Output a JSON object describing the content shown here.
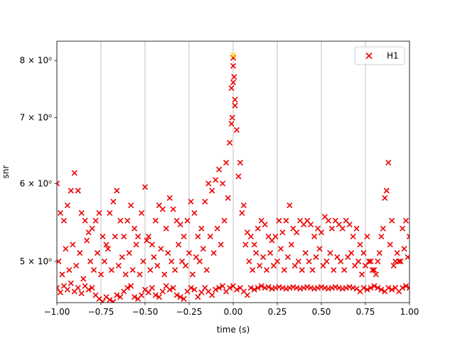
{
  "chart_data": {
    "type": "scatter",
    "xlabel": "time (s)",
    "ylabel": "snr",
    "xlim": [
      -1,
      1
    ],
    "ylim": [
      4.54,
      8.37
    ],
    "yscale": "log",
    "grid": "x",
    "legend": "upper right",
    "xticks": [
      {
        "value": -1,
        "label": "−1.00"
      },
      {
        "value": -0.75,
        "label": "−0.75"
      },
      {
        "value": -0.5,
        "label": "−0.50"
      },
      {
        "value": -0.25,
        "label": "−0.25"
      },
      {
        "value": 0,
        "label": "0.00"
      },
      {
        "value": 0.25,
        "label": "0.25"
      },
      {
        "value": 0.5,
        "label": "0.50"
      },
      {
        "value": 0.75,
        "label": "0.75"
      },
      {
        "value": 1,
        "label": "1.00"
      }
    ],
    "yticks": [
      {
        "value": 5,
        "label": "5 × 10⁰"
      },
      {
        "value": 6,
        "label": "6 × 10⁰"
      },
      {
        "value": 7,
        "label": "7 × 10⁰"
      },
      {
        "value": 8,
        "label": "8 × 10⁰"
      }
    ],
    "series": [
      {
        "name": "H1",
        "color": "#ee0000",
        "x": [
          -1.0,
          -0.98,
          -0.96,
          -0.94,
          -0.92,
          -0.9,
          -0.88,
          -0.86,
          -0.84,
          -0.82,
          -0.8,
          -0.78,
          -0.76,
          -0.74,
          -0.72,
          -0.7,
          -0.68,
          -0.66,
          -0.64,
          -0.62,
          -0.6,
          -0.58,
          -0.56,
          -0.54,
          -0.52,
          -0.5,
          -0.48,
          -0.46,
          -0.44,
          -0.42,
          -0.4,
          -0.38,
          -0.36,
          -0.34,
          -0.32,
          -0.3,
          -0.28,
          -0.26,
          -0.24,
          -0.22,
          -0.2,
          -0.18,
          -0.16,
          -0.14,
          -0.12,
          -0.1,
          -0.08,
          -0.06,
          -0.04,
          -0.02,
          0,
          0.02,
          0.04,
          0.06,
          0.08,
          0.1,
          0.12,
          0.14,
          0.16,
          0.18,
          0.2,
          0.22,
          0.24,
          0.26,
          0.28,
          0.3,
          0.32,
          0.34,
          0.36,
          0.38,
          0.4,
          0.42,
          0.44,
          0.46,
          0.48,
          0.5,
          0.52,
          0.54,
          0.56,
          0.58,
          0.6,
          0.62,
          0.64,
          0.66,
          0.68,
          0.7,
          0.72,
          0.74,
          0.76,
          0.78,
          0.8,
          0.82,
          0.84,
          0.86,
          0.88,
          0.9,
          0.92,
          0.94,
          0.96,
          0.98,
          1,
          -1.0,
          -0.98,
          -0.96,
          -0.94,
          -0.92,
          -0.9,
          -0.88,
          -0.86,
          -0.84,
          -0.82,
          -0.8,
          -0.78,
          -0.76,
          -0.74,
          -0.72,
          -0.7,
          -0.68,
          -0.66,
          -0.64,
          -0.62,
          -0.6,
          -0.58,
          -0.56,
          -0.54,
          -0.52,
          -0.5,
          -0.48,
          -0.46,
          -0.44,
          -0.42,
          -0.4,
          -0.38,
          -0.36,
          -0.34,
          -0.32,
          -0.3,
          -0.28,
          -0.26,
          -0.24,
          -0.22,
          -0.2,
          -0.18,
          -0.16,
          -0.14,
          -0.12,
          -0.1,
          -0.08,
          -0.06,
          -0.04,
          -0.02,
          0,
          0.02,
          0.04,
          0.06,
          0.08,
          0.1,
          0.12,
          0.14,
          0.16,
          0.18,
          0.2,
          0.22,
          0.24,
          0.26,
          0.28,
          0.3,
          0.32,
          0.34,
          0.36,
          0.38,
          0.4,
          0.42,
          0.44,
          0.46,
          0.48,
          0.5,
          0.52,
          0.54,
          0.56,
          0.58,
          0.6,
          0.62,
          0.64,
          0.66,
          0.68,
          0.7,
          0.72,
          0.74,
          0.76,
          0.78,
          0.8,
          0.82,
          0.84,
          0.86,
          0.88,
          0.9,
          0.92,
          0.94,
          0.96,
          0.98,
          1,
          -0.99,
          -0.97,
          -0.95,
          -0.93,
          -0.91,
          -0.89,
          -0.87,
          -0.85,
          -0.83,
          -0.81,
          -0.79,
          -0.77,
          -0.75,
          -0.73,
          -0.71,
          -0.69,
          -0.67,
          -0.65,
          -0.63,
          -0.61,
          -0.59,
          -0.57,
          -0.55,
          -0.53,
          -0.51,
          -0.49,
          -0.47,
          -0.45,
          -0.43,
          -0.41,
          -0.39,
          -0.37,
          -0.35,
          -0.33,
          -0.31,
          -0.29,
          -0.27,
          -0.25,
          -0.23,
          -0.21,
          -0.19,
          -0.17,
          -0.15,
          -0.13,
          -0.11,
          -0.09,
          -0.07,
          -0.05,
          -0.03,
          -0.01,
          0.01,
          0.03,
          0.05,
          0.07,
          0.09,
          0.11,
          0.13,
          0.15,
          0.17,
          0.19,
          0.21,
          0.23,
          0.25,
          0.27,
          0.29,
          0.31,
          0.33,
          0.35,
          0.37,
          0.39,
          0.41,
          0.43,
          0.45,
          0.47,
          0.49,
          0.51,
          0.53,
          0.55,
          0.57,
          0.59,
          0.61,
          0.63,
          0.65,
          0.67,
          0.69,
          0.71,
          0.73,
          0.75,
          0.77,
          0.79,
          0.81,
          0.83,
          0.85,
          0.87,
          0.89,
          0.91,
          0.93,
          0.95,
          0.97,
          0.99,
          -0.01,
          0.005,
          0,
          0.01,
          -0.005,
          0
        ],
        "y": [
          6.0,
          5.6,
          5.5,
          5.7,
          5.9,
          6.15,
          5.9,
          5.6,
          5.5,
          5.35,
          5.4,
          5.5,
          5.6,
          5.3,
          5.2,
          5.6,
          5.75,
          5.9,
          5.5,
          5.3,
          5.5,
          5.7,
          5.4,
          5.3,
          5.6,
          5.95,
          5.3,
          5.2,
          5.5,
          5.7,
          5.65,
          5.4,
          5.8,
          5.65,
          5.5,
          5.45,
          5.3,
          5.5,
          5.75,
          5.6,
          5.3,
          5.4,
          5.75,
          6.0,
          5.9,
          6.05,
          6.2,
          6.0,
          6.3,
          6.6,
          7.9,
          6.8,
          6.3,
          5.7,
          5.35,
          5.3,
          5.2,
          5.4,
          5.5,
          5.45,
          5.3,
          5.25,
          5.3,
          5.5,
          5.35,
          5.5,
          5.7,
          5.4,
          5.35,
          5.5,
          5.45,
          5.5,
          5.45,
          5.3,
          5.4,
          5.35,
          5.55,
          5.5,
          5.4,
          5.5,
          5.45,
          5.4,
          5.5,
          5.45,
          5.3,
          5.4,
          5.2,
          5.1,
          5.3,
          5.0,
          4.9,
          5.0,
          5.3,
          5.8,
          6.3,
          5.5,
          5.0,
          5.0,
          5.4,
          5.5,
          5.3,
          4.7,
          4.65,
          4.72,
          4.68,
          4.75,
          4.66,
          4.7,
          4.64,
          4.72,
          4.68,
          4.7,
          4.62,
          4.58,
          4.55,
          4.6,
          4.57,
          4.55,
          4.62,
          4.6,
          4.66,
          4.7,
          4.72,
          4.6,
          4.58,
          4.62,
          4.68,
          4.65,
          4.7,
          4.62,
          4.6,
          4.66,
          4.72,
          4.68,
          4.7,
          4.62,
          4.6,
          4.58,
          4.66,
          4.7,
          4.68,
          4.6,
          4.65,
          4.7,
          4.66,
          4.62,
          4.68,
          4.7,
          4.72,
          4.66,
          4.7,
          4.72,
          4.68,
          4.7,
          4.66,
          4.62,
          4.7,
          4.68,
          4.7,
          4.72,
          4.7,
          4.71,
          4.69,
          4.7,
          4.71,
          4.7,
          4.69,
          4.7,
          4.71,
          4.7,
          4.69,
          4.7,
          4.71,
          4.7,
          4.69,
          4.7,
          4.71,
          4.7,
          4.69,
          4.7,
          4.71,
          4.7,
          4.69,
          4.7,
          4.71,
          4.7,
          4.69,
          4.66,
          4.7,
          4.68,
          4.7,
          4.72,
          4.7,
          4.68,
          4.66,
          4.7,
          4.68,
          4.7,
          4.66,
          4.7,
          4.72,
          4.7,
          5.0,
          4.85,
          5.15,
          4.9,
          5.2,
          4.95,
          5.1,
          4.8,
          5.25,
          5.0,
          4.9,
          5.1,
          4.85,
          5.0,
          5.15,
          4.9,
          5.3,
          4.95,
          5.05,
          4.85,
          5.1,
          4.9,
          5.2,
          4.85,
          5.0,
          5.25,
          4.9,
          5.05,
          4.95,
          5.15,
          4.85,
          5.1,
          5.0,
          4.9,
          5.2,
          5.0,
          4.95,
          5.1,
          4.85,
          5.05,
          5.0,
          5.15,
          4.9,
          5.3,
          5.1,
          5.4,
          5.2,
          5.5,
          5.8,
          6.9,
          7.3,
          6.1,
          5.6,
          5.2,
          5.0,
          4.9,
          5.1,
          4.95,
          5.05,
          4.9,
          5.1,
          4.95,
          5.0,
          5.15,
          4.9,
          5.05,
          5.2,
          4.95,
          5.0,
          4.9,
          5.1,
          5.0,
          4.9,
          5.05,
          5.15,
          4.95,
          5.0,
          5.1,
          4.9,
          5.05,
          5.0,
          4.9,
          5.05,
          5.1,
          4.95,
          5.0,
          4.85,
          4.95,
          5.0,
          4.9,
          4.85,
          5.1,
          5.4,
          5.9,
          5.2,
          4.95,
          5.1,
          5.0,
          5.15,
          5.05,
          7.5,
          7.7,
          8.05,
          7.2,
          7.0,
          7.6
        ]
      }
    ],
    "highlight": {
      "x": 0,
      "y": 8.1,
      "color": "#ffdd00"
    }
  }
}
